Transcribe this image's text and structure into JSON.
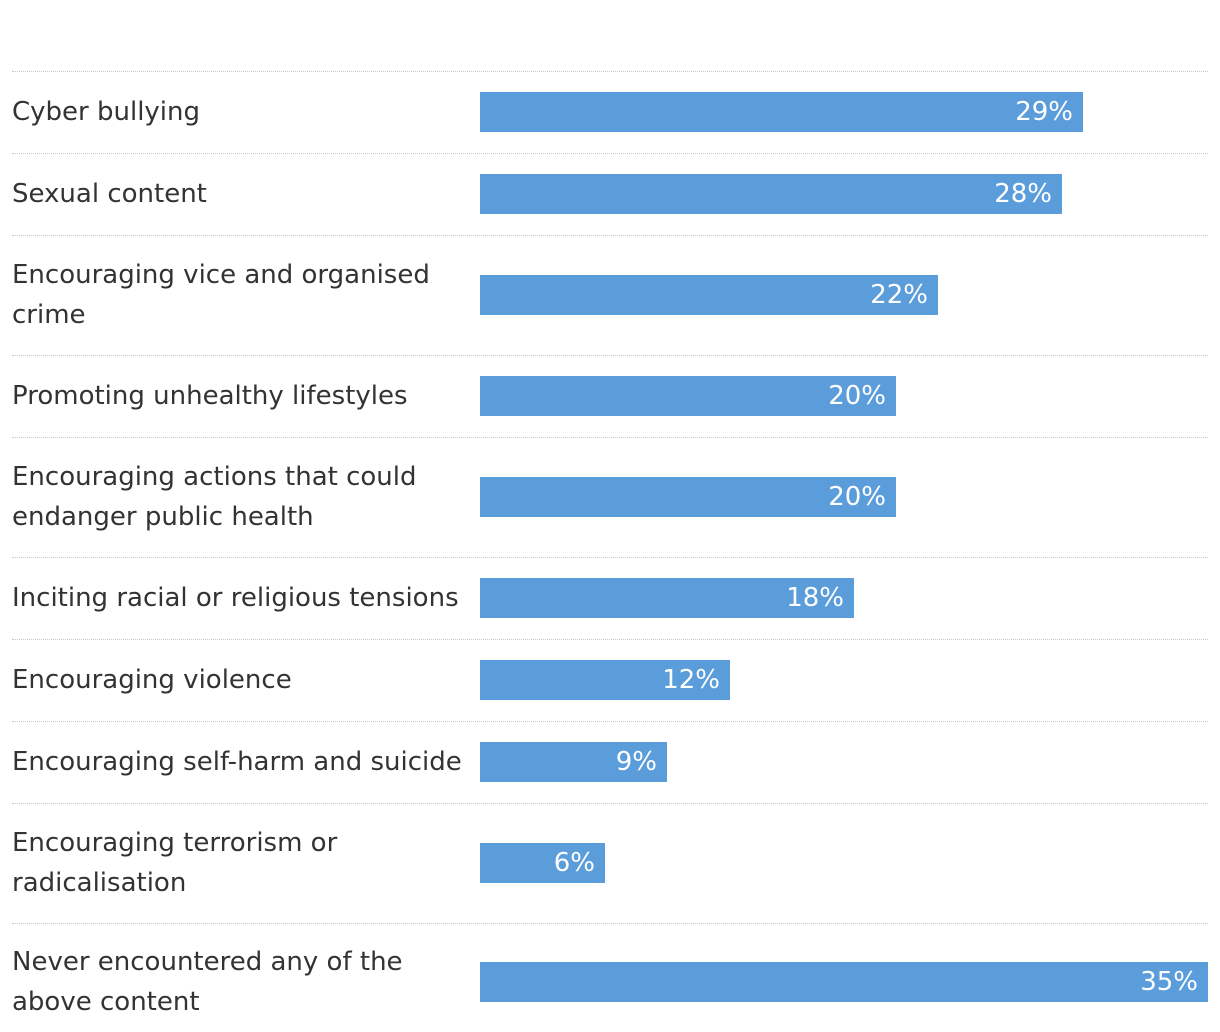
{
  "chart_data": {
    "type": "bar",
    "orientation": "horizontal",
    "categories": [
      "Cyber bullying",
      "Sexual content",
      "Encouraging vice and organised crime",
      "Promoting unhealthy lifestyles",
      "Encouraging actions that could endanger public health",
      "Inciting racial or religious tensions",
      "Encouraging violence",
      "Encouraging self-harm and suicide",
      "Encouraging terrorism or radicalisation",
      "Never encountered any of the above content"
    ],
    "values": [
      29,
      28,
      22,
      20,
      20,
      18,
      12,
      9,
      6,
      35
    ],
    "value_labels": [
      "29%",
      "28%",
      "22%",
      "20%",
      "20%",
      "18%",
      "12%",
      "9%",
      "6%",
      "35%"
    ],
    "unit": "%",
    "xlim": [
      0,
      35
    ],
    "title": "",
    "xlabel": "",
    "ylabel": "",
    "bar_color": "#5b9ddb",
    "label_color": "#ffffff",
    "grid": false
  }
}
